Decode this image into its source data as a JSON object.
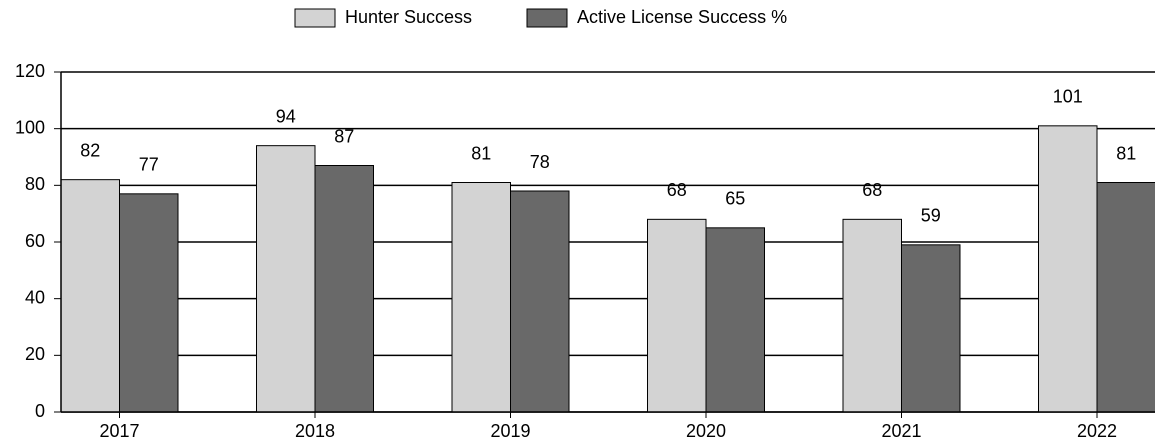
{
  "chart_data": {
    "type": "bar",
    "categories": [
      "2017",
      "2018",
      "2019",
      "2020",
      "2021",
      "2022"
    ],
    "series": [
      {
        "name": "Hunter Success",
        "color": "#d3d3d3",
        "values": [
          82,
          94,
          81,
          68,
          68,
          101
        ]
      },
      {
        "name": "Active License Success %",
        "color": "#696969",
        "values": [
          77,
          87,
          78,
          65,
          59,
          81
        ]
      }
    ],
    "ylim": [
      0,
      120
    ],
    "yticks": [
      0,
      20,
      40,
      60,
      80,
      100,
      120
    ],
    "grid": true,
    "legend": "top"
  }
}
